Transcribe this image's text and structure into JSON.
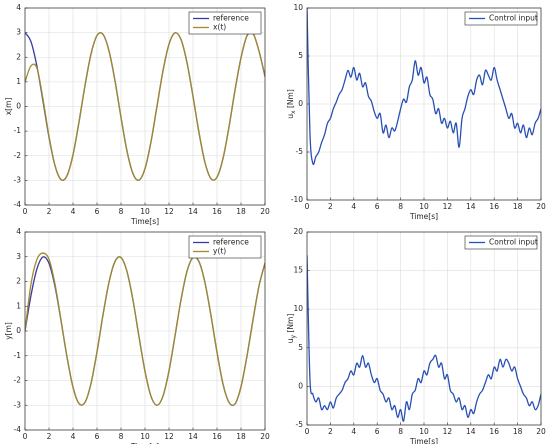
{
  "chart_data": [
    {
      "type": "line",
      "xlabel": "Time[s]",
      "ylabel": {
        "base": "x[m]"
      },
      "xlim": [
        0,
        20
      ],
      "ylim": [
        -4,
        4
      ],
      "xticks": [
        0,
        2,
        4,
        6,
        8,
        10,
        12,
        14,
        16,
        18,
        20
      ],
      "yticks": [
        -4,
        -3,
        -2,
        -1,
        0,
        1,
        2,
        3,
        4
      ],
      "grid": true,
      "legend": "upper right",
      "x": [
        0,
        0.5,
        1,
        1.5,
        2,
        2.5,
        3,
        3.5,
        4,
        4.5,
        5,
        5.5,
        6,
        6.5,
        7,
        7.5,
        8,
        8.5,
        9,
        9.5,
        10,
        10.5,
        11,
        11.5,
        12,
        12.5,
        13,
        13.5,
        14,
        14.5,
        15,
        15.5,
        16,
        16.5,
        17,
        17.5,
        18,
        18.5,
        19,
        19.5,
        20
      ],
      "series": [
        {
          "name": "reference",
          "color": "#3a3a9e",
          "values": [
            3.0,
            2.63,
            1.62,
            0.21,
            -1.25,
            -2.4,
            -2.97,
            -2.81,
            -1.96,
            -0.63,
            0.85,
            2.13,
            2.88,
            2.93,
            2.26,
            1.04,
            -0.44,
            -1.81,
            -2.73,
            -2.99,
            -2.52,
            -1.43,
            0.01,
            1.45,
            2.53,
            2.99,
            2.72,
            1.78,
            0.41,
            -1.06,
            -2.28,
            -2.93,
            -2.87,
            -2.11,
            -0.83,
            0.66,
            1.98,
            2.87,
            2.97,
            2.25,
            1.22
          ]
        },
        {
          "name": "x(t)",
          "color": "#a08a2c",
          "values": [
            1.0,
            1.65,
            1.55,
            0.3,
            -1.2,
            -2.4,
            -2.97,
            -2.81,
            -1.96,
            -0.63,
            0.85,
            2.13,
            2.88,
            2.93,
            2.26,
            1.04,
            -0.44,
            -1.81,
            -2.73,
            -2.99,
            -2.52,
            -1.43,
            0.01,
            1.45,
            2.53,
            2.99,
            2.72,
            1.78,
            0.41,
            -1.06,
            -2.28,
            -2.93,
            -2.87,
            -2.11,
            -0.83,
            0.66,
            1.98,
            2.87,
            2.97,
            2.25,
            1.22
          ]
        }
      ]
    },
    {
      "type": "line",
      "xlabel": "Time[s]",
      "ylabel": {
        "base": "u",
        "sub": "x",
        "unit": " [Nm]"
      },
      "xlim": [
        0,
        20
      ],
      "ylim": [
        -10,
        10
      ],
      "xticks": [
        0,
        2,
        4,
        6,
        8,
        10,
        12,
        14,
        16,
        18,
        20
      ],
      "yticks": [
        -10,
        -5,
        0,
        5,
        10
      ],
      "grid": true,
      "legend": "upper right",
      "x": [
        0,
        0.25,
        0.5,
        0.75,
        1,
        1.25,
        1.5,
        1.75,
        2,
        2.25,
        2.5,
        2.75,
        3,
        3.25,
        3.5,
        3.75,
        4,
        4.25,
        4.5,
        4.75,
        5,
        5.25,
        5.5,
        5.75,
        6,
        6.25,
        6.5,
        6.75,
        7,
        7.25,
        7.5,
        7.75,
        8,
        8.25,
        8.5,
        8.75,
        9,
        9.25,
        9.5,
        9.75,
        10,
        10.25,
        10.5,
        10.75,
        11,
        11.25,
        11.5,
        11.75,
        12,
        12.25,
        12.5,
        12.75,
        13,
        13.25,
        13.5,
        13.75,
        14,
        14.25,
        14.5,
        14.75,
        15,
        15.25,
        15.5,
        15.75,
        16,
        16.25,
        16.5,
        16.75,
        17,
        17.25,
        17.5,
        17.75,
        18,
        18.25,
        18.5,
        18.75,
        19,
        19.25,
        19.5,
        19.75,
        20
      ],
      "series": [
        {
          "name": "Control input",
          "color": "#2850b4",
          "values": [
            10,
            -3,
            -6.2,
            -5.5,
            -5,
            -4,
            -3.2,
            -2,
            -1.5,
            -0.5,
            0.2,
            1,
            1.5,
            2.5,
            3.5,
            2.8,
            3.8,
            2.5,
            3.2,
            1.8,
            2.2,
            0.8,
            0.3,
            -0.8,
            -1.5,
            -1,
            -3,
            -2.2,
            -3.5,
            -2.5,
            -2.8,
            -1.8,
            -0.5,
            0.5,
            0.2,
            1.8,
            2.5,
            4.5,
            3,
            3.8,
            2.2,
            2.8,
            1,
            0.5,
            -1,
            -0.5,
            -2,
            -1.5,
            -2.5,
            -1.8,
            -3,
            -2,
            -4.5,
            -1.5,
            -0.5,
            0.8,
            1.5,
            1,
            2.5,
            3,
            2,
            3.5,
            3,
            2.5,
            3.8,
            2.5,
            1.5,
            0.5,
            -0.5,
            -1.5,
            -1,
            -2.5,
            -2,
            -3,
            -2.2,
            -3.5,
            -2.5,
            -3.2,
            -2,
            -1.5,
            -0.5
          ]
        }
      ]
    },
    {
      "type": "line",
      "xlabel": "Time[s]",
      "ylabel": {
        "base": "y[m]"
      },
      "xlim": [
        0,
        20
      ],
      "ylim": [
        -4,
        4
      ],
      "xticks": [
        0,
        2,
        4,
        6,
        8,
        10,
        12,
        14,
        16,
        18,
        20
      ],
      "yticks": [
        -4,
        -3,
        -2,
        -1,
        0,
        1,
        2,
        3,
        4
      ],
      "grid": true,
      "legend": "upper right",
      "x": [
        0,
        0.5,
        1,
        1.5,
        2,
        2.5,
        3,
        3.5,
        4,
        4.5,
        5,
        5.5,
        6,
        6.5,
        7,
        7.5,
        8,
        8.5,
        9,
        9.5,
        10,
        10.5,
        11,
        11.5,
        12,
        12.5,
        13,
        13.5,
        14,
        14.5,
        15,
        15.5,
        16,
        16.5,
        17,
        17.5,
        18,
        18.5,
        19,
        19.5,
        20
      ],
      "series": [
        {
          "name": "reference",
          "color": "#3a3a9e",
          "values": [
            0,
            1.44,
            2.52,
            2.99,
            2.73,
            1.8,
            0.42,
            -1.05,
            -2.27,
            -2.93,
            -2.88,
            -2.12,
            -0.84,
            0.65,
            1.97,
            2.81,
            2.97,
            2.4,
            1.24,
            -0.23,
            -1.63,
            -2.64,
            -3.0,
            -2.63,
            -1.61,
            -0.2,
            1.26,
            2.41,
            2.97,
            2.8,
            1.95,
            0.62,
            -0.86,
            -2.14,
            -2.88,
            -2.95,
            -2.25,
            -1.01,
            0.45,
            1.82,
            2.74
          ]
        },
        {
          "name": "y(t)",
          "color": "#a08a2c",
          "values": [
            0,
            1.9,
            2.9,
            3.15,
            2.9,
            1.9,
            0.45,
            -1.05,
            -2.27,
            -2.93,
            -2.88,
            -2.12,
            -0.84,
            0.65,
            1.97,
            2.81,
            2.97,
            2.4,
            1.24,
            -0.23,
            -1.63,
            -2.64,
            -3.0,
            -2.63,
            -1.61,
            -0.2,
            1.26,
            2.41,
            2.97,
            2.8,
            1.95,
            0.62,
            -0.86,
            -2.14,
            -2.88,
            -2.95,
            -2.25,
            -1.01,
            0.45,
            1.82,
            2.74
          ]
        }
      ]
    },
    {
      "type": "line",
      "xlabel": "Time[s]",
      "ylabel": {
        "base": "u",
        "sub": "y",
        "unit": " [Nm]"
      },
      "xlim": [
        0,
        20
      ],
      "ylim": [
        -5,
        20
      ],
      "xticks": [
        0,
        2,
        4,
        6,
        8,
        10,
        12,
        14,
        16,
        18,
        20
      ],
      "yticks": [
        -5,
        0,
        5,
        10,
        15,
        20
      ],
      "grid": true,
      "legend": "upper right",
      "x": [
        0,
        0.25,
        0.5,
        0.75,
        1,
        1.25,
        1.5,
        1.75,
        2,
        2.25,
        2.5,
        2.75,
        3,
        3.25,
        3.5,
        3.75,
        4,
        4.25,
        4.5,
        4.75,
        5,
        5.25,
        5.5,
        5.75,
        6,
        6.25,
        6.5,
        6.75,
        7,
        7.25,
        7.5,
        7.75,
        8,
        8.25,
        8.5,
        8.75,
        9,
        9.25,
        9.5,
        9.75,
        10,
        10.25,
        10.5,
        10.75,
        11,
        11.25,
        11.5,
        11.75,
        12,
        12.25,
        12.5,
        12.75,
        13,
        13.25,
        13.5,
        13.75,
        14,
        14.25,
        14.5,
        14.75,
        15,
        15.25,
        15.5,
        15.75,
        16,
        16.25,
        16.5,
        16.75,
        17,
        17.25,
        17.5,
        17.75,
        18,
        18.25,
        18.5,
        18.75,
        19,
        19.25,
        19.5,
        19.75,
        20
      ],
      "series": [
        {
          "name": "Control input",
          "color": "#2850b4",
          "values": [
            17,
            1,
            -1,
            -2,
            -1.5,
            -3,
            -2.5,
            -3,
            -2,
            -2.8,
            -1.5,
            -1,
            -0.5,
            0.5,
            1,
            2,
            1.5,
            3,
            2.5,
            4,
            2.5,
            3,
            1.5,
            0.5,
            1,
            -0.5,
            -1,
            -2,
            -1.5,
            -3,
            -2.5,
            -4,
            -3,
            -4.5,
            -2,
            -3,
            -1,
            -0.5,
            1,
            0.5,
            2,
            1.5,
            3,
            3.5,
            4,
            2.5,
            3,
            1,
            1.5,
            -0.5,
            -1,
            -2,
            -1.5,
            -3,
            -2.5,
            -4,
            -3,
            -3.5,
            -2,
            -1,
            -0.5,
            0.5,
            1.5,
            1,
            2.5,
            2,
            3.5,
            2.5,
            3.5,
            3,
            2,
            2.5,
            1,
            0,
            -1,
            -1.5,
            -2.5,
            -2,
            -3,
            -2.5,
            -1
          ]
        }
      ]
    }
  ]
}
